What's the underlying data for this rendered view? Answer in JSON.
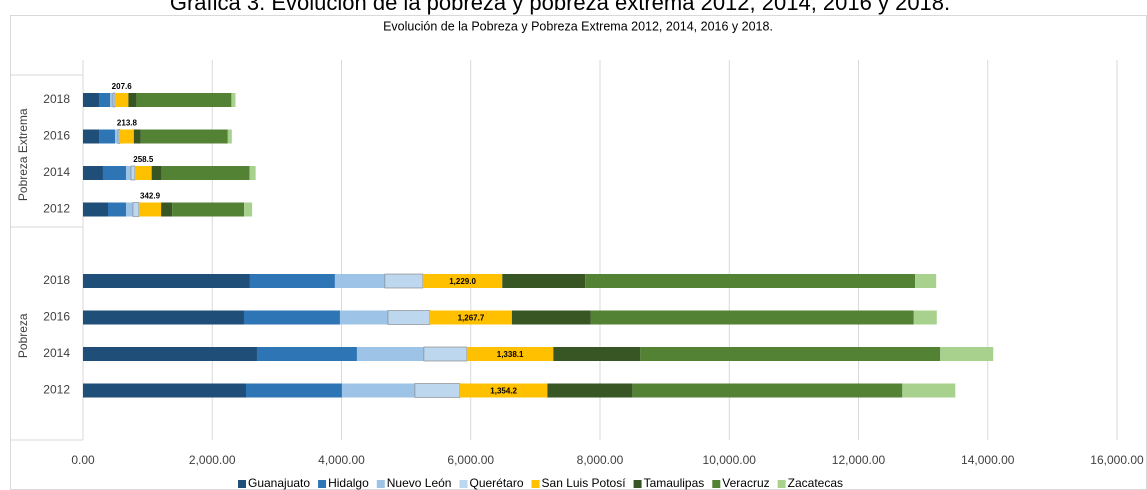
{
  "chart_data": {
    "type": "stacked_barh",
    "caption": "Gráfica 3. Evolución de la pobreza y pobreza extrema 2012, 2014, 2016 y 2018.",
    "title": "Evolución de la Pobreza y Pobreza Extrema 2012, 2014, 2016 y 2018.",
    "groups": [
      {
        "label": "Pobreza Extrema",
        "categories": [
          "2018",
          "2016",
          "2014",
          "2012"
        ]
      },
      {
        "label": "Pobreza",
        "categories": [
          "2018",
          "2016",
          "2014",
          "2012"
        ]
      }
    ],
    "series": [
      {
        "name": "Guanajuato",
        "color": "#1f4e79",
        "values": [
          248,
          248,
          309,
          387,
          2583,
          2491,
          2692,
          2522
        ]
      },
      {
        "name": "Hidalgo",
        "color": "#2e75b6",
        "values": [
          170,
          248,
          356,
          278,
          1315,
          1485,
          1547,
          1485
        ]
      },
      {
        "name": "Nuevo León",
        "color": "#9dc3e6",
        "values": [
          46,
          46,
          77,
          108,
          773,
          743,
          1036,
          1129
        ]
      },
      {
        "name": "Querétaro",
        "color": "#bdd7ee",
        "values": [
          31,
          31,
          62,
          93,
          588,
          650,
          665,
          696
        ]
      },
      {
        "name": "San Luis Potosí",
        "color": "#ffc000",
        "values": [
          207.6,
          213.8,
          258.5,
          342.9,
          1229.0,
          1267.7,
          1338.1,
          1354.2
        ],
        "value_labels": [
          "207.6",
          "213.8",
          "258.5",
          "342.9",
          "1,229.0",
          "1,267.7",
          "1,338.1",
          "1,354.2"
        ]
      },
      {
        "name": "Tamaulipas",
        "color": "#375623",
        "values": [
          124,
          108,
          155,
          170,
          1284,
          1222,
          1346,
          1315
        ]
      },
      {
        "name": "Veracruz",
        "color": "#548235",
        "values": [
          1470,
          1346,
          1361,
          1114,
          5105,
          4997,
          4641,
          4177
        ]
      },
      {
        "name": "Zacatecas",
        "color": "#a9d18e",
        "values": [
          62,
          62,
          93,
          124,
          325,
          356,
          820,
          820
        ]
      }
    ],
    "xlim": [
      0,
      16000
    ],
    "xticks": [
      {
        "value": 0,
        "label": "0.00"
      },
      {
        "value": 2000,
        "label": "2,000.00"
      },
      {
        "value": 4000,
        "label": "4,000.00"
      },
      {
        "value": 6000,
        "label": "6,000.00"
      },
      {
        "value": 8000,
        "label": "8,000.00"
      },
      {
        "value": 10000,
        "label": "10,000.00"
      },
      {
        "value": 12000,
        "label": "12,000.00"
      },
      {
        "value": 14000,
        "label": "14,000.00"
      },
      {
        "value": 16000,
        "label": "16,000.00"
      }
    ],
    "grid": true,
    "legend": "bottom"
  }
}
